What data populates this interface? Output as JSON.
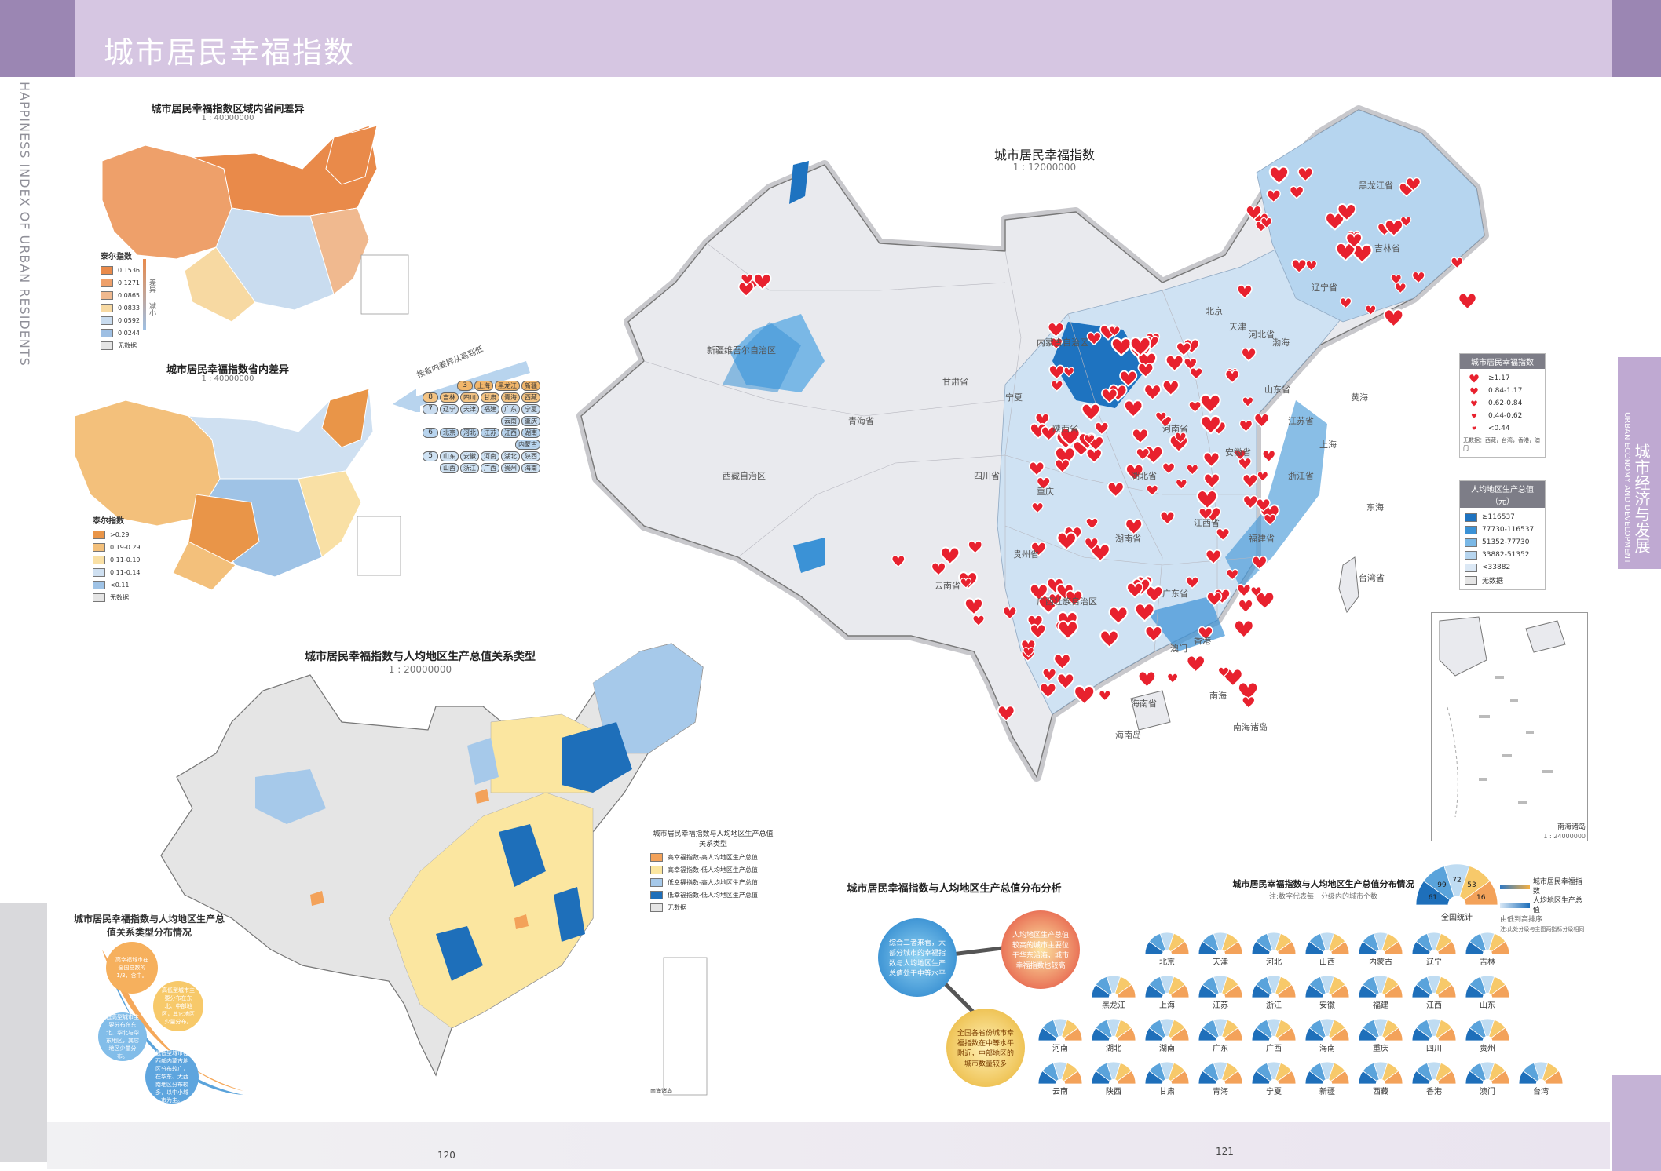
{
  "header": {
    "title": "城市居民幸福指数",
    "vertical_en": "HAPPINESS INDEX OF URBAN RESIDENTS",
    "section_cn": "城市经济与发展",
    "section_en": "URBAN ECONOMY AND DEVELOPMENT"
  },
  "pages": {
    "left": "120",
    "right": "121"
  },
  "inset1": {
    "title": "城市居民幸福指数区域内省间差异",
    "scale": "1 : 40000000",
    "legend_title": "泰尔指数",
    "legend_items": [
      "0.1536",
      "0.1271",
      "0.0865",
      "0.0833",
      "0.0592",
      "0.0244",
      "无数据"
    ],
    "legend_colors": [
      "#e98a4a",
      "#eea06a",
      "#f0b98f",
      "#f7d9a2",
      "#c9dcef",
      "#9ebfe3",
      "#e5e5e5"
    ],
    "arrow_top": "差异",
    "arrow_bottom": "减小"
  },
  "inset2": {
    "title": "城市居民幸福指数省内差异",
    "scale": "1 : 40000000",
    "legend_title": "泰尔指数",
    "legend_items": [
      ">0.29",
      "0.19-0.29",
      "0.11-0.19",
      "0.11-0.14",
      "<0.11",
      "无数据"
    ],
    "legend_colors": [
      "#e99548",
      "#f3c07b",
      "#f9e0a5",
      "#cfe0f1",
      "#9fc3e6",
      "#e5e5e5"
    ]
  },
  "ranking": {
    "label": "按省内差异从高到低",
    "groups": [
      {
        "num": "3",
        "provinces": [
          "上海",
          "黑龙江",
          "新疆"
        ]
      },
      {
        "num": "8",
        "provinces": [
          "吉林",
          "四川",
          "甘肃",
          "青海",
          "西藏"
        ]
      },
      {
        "num": "7",
        "provinces": [
          "辽宁",
          "天津",
          "福建",
          "广东",
          "宁夏",
          "云南",
          "重庆"
        ]
      },
      {
        "num": "6",
        "provinces": [
          "北京",
          "河北",
          "江苏",
          "江西",
          "湖南",
          "内蒙古"
        ]
      },
      {
        "num": "5",
        "provinces": [
          "山东",
          "安徽",
          "河南",
          "湖北",
          "陕西",
          "山西",
          "浙江",
          "广西",
          "贵州",
          "海南"
        ]
      }
    ]
  },
  "main_map": {
    "title": "城市居民幸福指数",
    "scale": "1 : 12000000",
    "legend1_title": "城市居民幸福指数",
    "legend1_items": [
      "≥1.17",
      "0.84-1.17",
      "0.62-0.84",
      "0.44-0.62",
      "<0.44"
    ],
    "legend1_note": "无数据：西藏，台湾，香港，澳门",
    "legend2_title": "人均地区生产总值（元）",
    "legend2_items": [
      "≥116537",
      "77730-116537",
      "51352-77730",
      "33882-51352",
      "<33882",
      "无数据"
    ],
    "legend2_colors": [
      "#1e73c0",
      "#3b92d6",
      "#7ab8e6",
      "#b6d5ef",
      "#dbe8f5",
      "#e5e5e5"
    ],
    "region_labels": [
      "新疆维吾尔自治区",
      "西藏自治区",
      "青海省",
      "内蒙古自治区",
      "黑龙江省",
      "吉林省",
      "辽宁省",
      "河北省",
      "山东省",
      "河南省",
      "湖北省",
      "湖南省",
      "四川省",
      "云南省",
      "贵州省",
      "广西壮族自治区",
      "广东省",
      "福建省",
      "江西省",
      "浙江省",
      "江苏省",
      "安徽省",
      "陕西省",
      "甘肃省",
      "宁夏",
      "北京",
      "天津",
      "上海",
      "重庆",
      "海南省",
      "台湾省",
      "香港",
      "澳门",
      "黄海",
      "东海",
      "南海",
      "渤海",
      "海南岛",
      "南海诸岛"
    ],
    "inset_label": "南海诸岛",
    "inset_scale": "1 : 24000000"
  },
  "relation_map": {
    "title": "城市居民幸福指数与人均地区生产总值关系类型",
    "scale": "1 : 20000000",
    "legend_title": "城市居民幸福指数与人均地区生产总值关系类型",
    "legend_items": [
      "高幸福指数-高人均地区生产总值",
      "高幸福指数-低人均地区生产总值",
      "低幸福指数-高人均地区生产总值",
      "低幸福指数-低人均地区生产总值",
      "无数据"
    ],
    "legend_colors": [
      "#f3a25a",
      "#fbe6a0",
      "#a6c9ea",
      "#1e6fba",
      "#e5e5e5"
    ],
    "inset_label": "南海诸岛"
  },
  "distribution": {
    "title": "城市居民幸福指数与人均地区生产总值关系类型分布情况",
    "bubbles": [
      "高幸福城市在全国总数的1/3，含中。",
      "高低型城市主要分布在东北、中部地区，其它地区少量分布。",
      "低高型城市主要分布在东北、华北与华东地区，其它地区少量分布。",
      "低低型城市在西部内蒙古地区分布较广，在华东、大西南地区分布较多，以中小城市为主。"
    ]
  },
  "analysis": {
    "title": "城市居民幸福指数与人均地区生产总值分布分析",
    "bubbles": [
      "综合二者来看，大部分城市的幸福指数与人均地区生产总值处于中等水平",
      "人均地区生产总值较高的城市主要位于华东沿海，城市幸福指数也较高",
      "全国各省份城市幸福指数在中等水平附近，中部地区的城市数量较多"
    ]
  },
  "fans": {
    "title": "城市居民幸福指数与人均地区生产总值分布情况",
    "note": "注:数字代表每一分级内的城市个数",
    "national_label": "全国统计",
    "national_values": [
      "61",
      "99",
      "72",
      "53",
      "16"
    ],
    "legend_row1": "城市居民幸福指数",
    "legend_row2": "人均地区生产总值",
    "legend_row3": "由低到高排序",
    "legend_row4": "注:此处分级与主图两指标分级相同",
    "provinces": [
      [
        "北京",
        "天津",
        "河北",
        "山西",
        "内蒙古",
        "辽宁",
        "吉林"
      ],
      [
        "黑龙江",
        "上海",
        "江苏",
        "浙江",
        "安徽",
        "福建",
        "江西",
        "山东"
      ],
      [
        "河南",
        "湖北",
        "湖南",
        "广东",
        "广西",
        "海南",
        "重庆",
        "四川",
        "贵州"
      ],
      [
        "云南",
        "陕西",
        "甘肃",
        "青海",
        "宁夏",
        "新疆",
        "西藏",
        "香港",
        "澳门",
        "台湾"
      ]
    ]
  }
}
